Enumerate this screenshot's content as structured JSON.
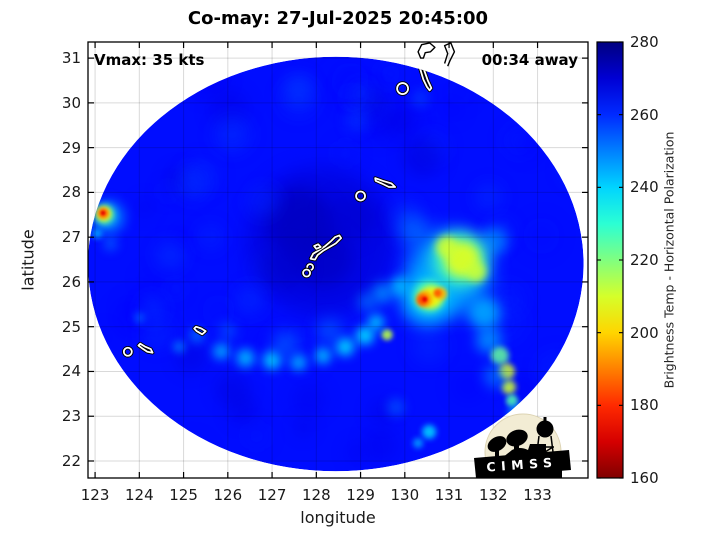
{
  "title": "Co-may: 27-Jul-2025 20:45:00",
  "annotations": {
    "vmax": "Vmax: 35 kts",
    "away": "00:34 away"
  },
  "axes": {
    "xlabel": "longitude",
    "ylabel": "latitude",
    "x_ticks": [
      123,
      124,
      125,
      126,
      127,
      128,
      129,
      130,
      131,
      132,
      133
    ],
    "y_ticks": [
      22,
      23,
      24,
      25,
      26,
      27,
      28,
      29,
      30,
      31
    ],
    "x_range": [
      122.84,
      134.14
    ],
    "y_range": [
      21.62,
      31.36
    ]
  },
  "colorbar": {
    "title": "Brightness Temp - Horizontal Polarization",
    "ticks": [
      160,
      180,
      200,
      220,
      240,
      260,
      280
    ],
    "min": 160,
    "max": 280,
    "colormap": "jet_reversed"
  },
  "logo": {
    "text": "CIMSS"
  },
  "chart_data": {
    "type": "heatmap",
    "title": "Co-may: 27-Jul-2025 20:45:00",
    "xlabel": "longitude",
    "ylabel": "latitude",
    "x_range": [
      122.84,
      134.14
    ],
    "y_range": [
      21.62,
      31.36
    ],
    "grid": true,
    "colorbar_label": "Brightness Temp - Horizontal Polarization",
    "color_range": [
      160,
      280
    ],
    "colormap": "jet reversed (280K navy -> 160K dark red)",
    "swath": {
      "center_lon": 128.44,
      "center_lat": 26.4,
      "radius_lon": 5.6,
      "radius_lat": 4.63,
      "base_temp_K": 263.5
    },
    "feature_format": [
      "lon",
      "lat",
      "radius_px",
      "temp_K",
      "blur_px",
      "opacity"
    ],
    "features": [
      [
        128.1,
        26.9,
        75,
        270.5,
        10,
        0.55
      ],
      [
        127.65,
        27.3,
        34,
        272.5,
        8,
        0.8
      ],
      [
        128.15,
        26.55,
        30,
        272.0,
        8,
        0.7
      ],
      [
        127.3,
        26.35,
        22,
        271.5,
        8,
        0.6
      ],
      [
        128.7,
        27.4,
        24,
        271.0,
        8,
        0.5
      ],
      [
        130.4,
        28.8,
        20,
        269.5,
        8,
        0.5
      ],
      [
        129.9,
        29.6,
        16,
        269.0,
        8,
        0.4
      ],
      [
        126.1,
        29.3,
        18,
        259.0,
        8,
        0.5
      ],
      [
        127.6,
        30.1,
        18,
        259.5,
        8,
        0.5
      ],
      [
        125.2,
        28.2,
        16,
        259.0,
        8,
        0.5
      ],
      [
        124.7,
        26.6,
        14,
        258.5,
        8,
        0.5
      ],
      [
        126.5,
        25.6,
        14,
        259.0,
        8,
        0.5
      ],
      [
        124.3,
        25.4,
        12,
        258.5,
        8,
        0.5
      ],
      [
        131.9,
        27.9,
        13,
        259.0,
        8,
        0.5
      ],
      [
        129.0,
        30.2,
        12,
        259.5,
        8,
        0.5
      ],
      [
        130.0,
        27.5,
        14,
        258.0,
        8,
        0.45
      ],
      [
        126.8,
        27.8,
        16,
        260.0,
        8,
        0.4
      ],
      [
        125.6,
        27.0,
        13,
        259.5,
        8,
        0.4
      ],
      [
        123.3,
        27.45,
        16,
        247.0,
        6,
        0.8
      ],
      [
        123.22,
        27.5,
        10,
        228.0,
        4,
        0.9
      ],
      [
        123.2,
        27.52,
        7.5,
        206.0,
        3,
        0.9
      ],
      [
        123.19,
        27.53,
        5.5,
        194.0,
        2,
        0.9
      ],
      [
        123.18,
        27.54,
        4,
        182.0,
        2,
        0.95
      ],
      [
        123.18,
        27.54,
        2,
        171.0,
        1,
        0.9
      ],
      [
        123.05,
        27.08,
        5,
        243.0,
        3,
        0.8
      ],
      [
        123.35,
        26.85,
        7,
        251.0,
        5,
        0.6
      ],
      [
        125.85,
        24.45,
        8,
        242.0,
        5,
        0.8
      ],
      [
        126.4,
        24.3,
        9,
        240.0,
        5,
        0.8
      ],
      [
        127.0,
        24.25,
        9,
        238.0,
        5,
        0.85
      ],
      [
        127.6,
        24.2,
        8,
        241.0,
        5,
        0.8
      ],
      [
        128.15,
        24.35,
        8,
        239.0,
        5,
        0.8
      ],
      [
        128.65,
        24.55,
        9,
        237.0,
        5,
        0.85
      ],
      [
        129.1,
        24.8,
        9,
        236.0,
        5,
        0.85
      ],
      [
        129.6,
        24.82,
        5.5,
        213.0,
        2.5,
        0.9
      ],
      [
        129.35,
        25.1,
        8,
        238.0,
        5,
        0.8
      ],
      [
        128.3,
        24.9,
        12,
        251.0,
        8,
        0.6
      ],
      [
        127.3,
        24.6,
        13,
        251.0,
        8,
        0.6
      ],
      [
        126.0,
        24.9,
        8,
        250.0,
        6,
        0.5
      ],
      [
        125.3,
        24.8,
        7,
        246.0,
        5,
        0.6
      ],
      [
        124.0,
        25.2,
        5,
        248.0,
        4,
        0.6
      ],
      [
        124.9,
        24.55,
        6,
        246.0,
        4,
        0.6
      ],
      [
        129.5,
        25.75,
        10,
        244.0,
        6,
        0.7
      ],
      [
        129.9,
        25.9,
        10,
        241.0,
        5,
        0.75
      ],
      [
        129.15,
        25.55,
        9,
        248.0,
        6,
        0.6
      ],
      [
        131.0,
        26.2,
        42,
        244.0,
        10,
        0.85
      ],
      [
        130.5,
        25.6,
        26,
        242.0,
        8,
        0.85
      ],
      [
        131.8,
        25.3,
        16,
        243.0,
        6,
        0.8
      ],
      [
        132.0,
        26.9,
        14,
        247.0,
        6,
        0.7
      ],
      [
        130.2,
        27.15,
        16,
        250.0,
        8,
        0.6
      ],
      [
        131.25,
        26.5,
        28,
        227.0,
        7,
        0.85
      ],
      [
        130.55,
        25.68,
        16,
        225.0,
        4,
        0.9
      ],
      [
        131.3,
        26.5,
        18,
        208.0,
        5,
        0.9
      ],
      [
        130.95,
        26.78,
        11,
        210.0,
        4,
        0.85
      ],
      [
        131.62,
        26.22,
        10,
        211.0,
        4,
        0.85
      ],
      [
        130.6,
        25.66,
        11,
        204.0,
        3,
        0.9
      ],
      [
        130.45,
        25.62,
        8,
        194.0,
        2.5,
        0.9
      ],
      [
        130.82,
        25.74,
        6,
        196.0,
        2,
        0.9
      ],
      [
        130.4,
        25.6,
        5.5,
        183.0,
        2,
        0.95
      ],
      [
        130.74,
        25.75,
        4,
        185.0,
        1.5,
        0.9
      ],
      [
        130.45,
        25.61,
        2.5,
        172.0,
        1,
        0.9
      ],
      [
        131.9,
        24.7,
        13,
        246.0,
        6,
        0.75
      ],
      [
        132.15,
        24.35,
        9,
        223.0,
        3,
        0.85
      ],
      [
        132.3,
        24.0,
        8,
        208.0,
        3,
        0.9
      ],
      [
        132.35,
        23.65,
        7,
        210.0,
        3,
        0.9
      ],
      [
        132.42,
        23.35,
        6,
        225.0,
        2.5,
        0.85
      ],
      [
        132.5,
        23.1,
        7,
        244.0,
        4,
        0.8
      ],
      [
        132.05,
        23.9,
        12,
        249.0,
        6,
        0.6
      ],
      [
        130.55,
        22.65,
        7,
        239.0,
        3,
        0.85
      ],
      [
        130.3,
        22.4,
        5,
        243.0,
        3,
        0.8
      ],
      [
        129.8,
        23.2,
        9,
        252.0,
        5,
        0.5
      ],
      [
        127.6,
        30.35,
        14,
        257.0,
        8,
        0.45
      ],
      [
        128.9,
        29.6,
        12,
        258.0,
        6,
        0.45
      ],
      [
        130.35,
        30.1,
        9,
        256.0,
        5,
        0.45
      ]
    ],
    "contours_white": [
      {
        "type": "path",
        "closed": true,
        "pts": [
          [
            128.56,
            26.98
          ],
          [
            128.44,
            26.86
          ],
          [
            128.3,
            26.78
          ],
          [
            128.16,
            26.7
          ],
          [
            128.03,
            26.6
          ],
          [
            127.97,
            26.5
          ],
          [
            127.87,
            26.52
          ],
          [
            127.93,
            26.63
          ],
          [
            128.06,
            26.71
          ],
          [
            128.2,
            26.8
          ],
          [
            128.32,
            26.9
          ],
          [
            128.42,
            27.0
          ],
          [
            128.52,
            27.04
          ]
        ]
      },
      {
        "type": "path",
        "closed": true,
        "pts": [
          [
            128.1,
            26.78
          ],
          [
            128.0,
            26.74
          ],
          [
            127.95,
            26.8
          ],
          [
            128.04,
            26.84
          ]
        ]
      },
      {
        "type": "circle",
        "lon": 127.86,
        "lat": 26.33,
        "r": 3
      },
      {
        "type": "circle",
        "lon": 127.78,
        "lat": 26.2,
        "r": 3.5
      },
      {
        "type": "circle",
        "lon": 129.0,
        "lat": 27.92,
        "r": 4.5
      },
      {
        "type": "path",
        "closed": true,
        "pts": [
          [
            129.33,
            28.32
          ],
          [
            129.5,
            28.26
          ],
          [
            129.7,
            28.2
          ],
          [
            129.78,
            28.12
          ],
          [
            129.64,
            28.12
          ],
          [
            129.48,
            28.2
          ],
          [
            129.34,
            28.26
          ]
        ]
      },
      {
        "type": "circle",
        "lon": 129.95,
        "lat": 30.32,
        "r": 5.5
      },
      {
        "type": "path",
        "closed": true,
        "pts": [
          [
            130.28,
            30.95
          ],
          [
            130.36,
            30.72
          ],
          [
            130.42,
            30.52
          ],
          [
            130.5,
            30.36
          ],
          [
            130.56,
            30.28
          ],
          [
            130.6,
            30.33
          ],
          [
            130.52,
            30.5
          ],
          [
            130.44,
            30.72
          ],
          [
            130.36,
            30.95
          ],
          [
            130.3,
            31.0
          ]
        ]
      },
      {
        "type": "circle",
        "lon": 123.74,
        "lat": 24.44,
        "r": 4
      },
      {
        "type": "path",
        "closed": true,
        "pts": [
          [
            124.02,
            24.62
          ],
          [
            124.12,
            24.56
          ],
          [
            124.26,
            24.5
          ],
          [
            124.3,
            24.42
          ],
          [
            124.18,
            24.44
          ],
          [
            124.06,
            24.52
          ],
          [
            123.98,
            24.58
          ]
        ]
      },
      {
        "type": "path",
        "closed": true,
        "pts": [
          [
            125.28,
            25.0
          ],
          [
            125.4,
            24.96
          ],
          [
            125.5,
            24.9
          ],
          [
            125.42,
            24.83
          ],
          [
            125.3,
            24.9
          ],
          [
            125.24,
            24.96
          ]
        ]
      }
    ],
    "contours_black": [
      {
        "type": "path",
        "closed": true,
        "pts": [
          [
            130.36,
            31.0
          ],
          [
            130.3,
            31.14
          ],
          [
            130.38,
            31.3
          ],
          [
            130.56,
            31.34
          ],
          [
            130.68,
            31.24
          ],
          [
            130.58,
            31.14
          ],
          [
            130.46,
            31.12
          ],
          [
            130.42,
            31.0
          ]
        ]
      },
      {
        "type": "path",
        "closed": false,
        "pts": [
          [
            130.9,
            30.88
          ],
          [
            130.97,
            31.1
          ],
          [
            130.9,
            31.28
          ],
          [
            131.04,
            31.34
          ],
          [
            131.12,
            31.14
          ],
          [
            131.02,
            30.94
          ],
          [
            130.97,
            30.82
          ]
        ]
      }
    ],
    "noise": {
      "count": 70,
      "seed": 7,
      "t_min": 259,
      "t_max": 270.5,
      "r_min": 8,
      "r_max": 20,
      "opacity": 0.38
    }
  }
}
